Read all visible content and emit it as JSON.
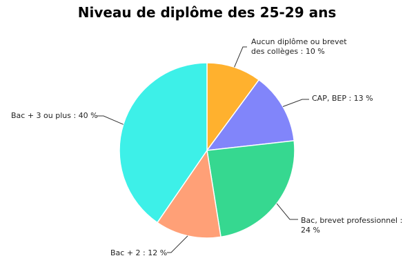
{
  "chart_data": {
    "type": "pie",
    "title": "Niveau de diplôme des 25-29 ans",
    "slices": [
      {
        "label": "Aucun diplôme ou brevet des collèges",
        "value": 10,
        "display": "Aucun diplôme ou brevet des collèges : 10 %",
        "color": "#FFB12E"
      },
      {
        "label": "CAP, BEP",
        "value": 13,
        "display": "CAP, BEP : 13 %",
        "color": "#8185FA"
      },
      {
        "label": "Bac, brevet professionnel",
        "value": 24,
        "display": "Bac, brevet professionnel : 24 %",
        "color": "#36D890"
      },
      {
        "label": "Bac + 2",
        "value": 12,
        "display": "Bac + 2 : 12 %",
        "color": "#FFA077"
      },
      {
        "label": "Bac + 3 ou plus",
        "value": 40,
        "display": "Bac + 3 ou plus : 40 %",
        "color": "#3DF0E8"
      }
    ]
  }
}
